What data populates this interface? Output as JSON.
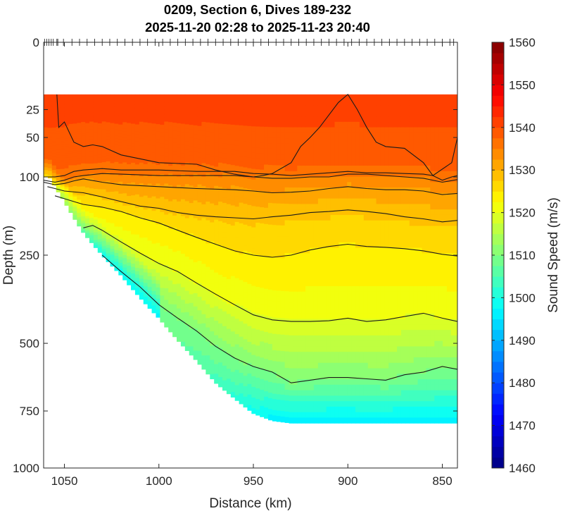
{
  "chart_data": {
    "type": "heatmap",
    "subtype": "filled-contour section",
    "title": "0209, Section 6, Dives 189-232",
    "subtitle": "2025-11-20 02:28 to 2025-11-23 20:40",
    "xlabel": "Distance (km)",
    "ylabel": "Depth (m)",
    "x_reversed": true,
    "xlim": [
      1061,
      842
    ],
    "ylim": [
      0,
      1000
    ],
    "y_scale": "sqrt",
    "x_ticks": [
      "1050",
      "1000",
      "950",
      "900",
      "850"
    ],
    "x_tick_values": [
      1050,
      1000,
      950,
      900,
      850
    ],
    "y_ticks": [
      "0",
      "25",
      "50",
      "100",
      "250",
      "500",
      "750",
      "1000"
    ],
    "y_tick_values": [
      0,
      25,
      50,
      100,
      250,
      500,
      750,
      1000
    ],
    "colorbar": {
      "label": "Sound Speed (m/s)",
      "range": [
        1460,
        1560
      ],
      "ticks": [
        "1460",
        "1470",
        "1480",
        "1490",
        "1500",
        "1510",
        "1520",
        "1530",
        "1540",
        "1550",
        "1560"
      ],
      "tick_values": [
        1460,
        1470,
        1480,
        1490,
        1500,
        1510,
        1520,
        1530,
        1540,
        1550,
        1560
      ],
      "colormap": "jet",
      "stops": [
        "#00007f",
        "#0000ff",
        "#007fff",
        "#00ffff",
        "#7fff7f",
        "#ffff00",
        "#ff7f00",
        "#ff0000",
        "#7f0000"
      ]
    },
    "data_top_depth": 15,
    "bottom_depth_profile": {
      "distance": [
        1058,
        1050,
        1040,
        1030,
        1020,
        1010,
        1000,
        990,
        980,
        970,
        960,
        950,
        940,
        930,
        920,
        900,
        880,
        860,
        842
      ],
      "depth": [
        100,
        140,
        200,
        250,
        300,
        360,
        420,
        490,
        560,
        640,
        700,
        760,
        790,
        800,
        800,
        800,
        800,
        800,
        800
      ]
    },
    "dive_marks": "dive position tick marks along the surface",
    "contours": [
      {
        "level": 1540,
        "distance": [
          1054,
          1053,
          1050,
          1045,
          1040,
          1035,
          1030,
          1020,
          1000,
          980,
          970,
          960,
          955,
          950,
          945,
          940,
          930,
          925,
          920,
          915,
          905,
          900,
          895,
          890,
          885,
          880,
          870,
          860,
          855,
          845,
          842
        ],
        "depth": [
          15,
          40,
          35,
          55,
          60,
          58,
          60,
          70,
          80,
          82,
          90,
          96,
          98,
          100,
          98,
          95,
          80,
          60,
          50,
          40,
          20,
          15,
          25,
          40,
          55,
          60,
          62,
          80,
          98,
          80,
          50
        ]
      },
      {
        "level": 1537,
        "distance": [
          1061,
          1058,
          1055,
          1050,
          1045,
          1040,
          1030,
          1020,
          1000,
          980,
          960,
          950,
          940,
          930,
          920,
          910,
          900,
          890,
          880,
          870,
          860,
          855,
          850,
          845,
          842
        ],
        "depth": [
          100,
          100,
          100,
          98,
          92,
          90,
          88,
          90,
          90,
          92,
          92,
          95,
          96,
          98,
          96,
          94,
          92,
          94,
          94,
          95,
          96,
          98,
          105,
          100,
          98
        ]
      },
      {
        "level": 1535,
        "distance": [
          1061,
          1055,
          1050,
          1045,
          1040,
          1030,
          1020,
          1000,
          980,
          960,
          950,
          940,
          930,
          920,
          910,
          900,
          890,
          880,
          870,
          860,
          850,
          842
        ],
        "depth": [
          105,
          108,
          105,
          100,
          98,
          95,
          96,
          98,
          98,
          98,
          100,
          102,
          102,
          100,
          100,
          96,
          96,
          98,
          100,
          102,
          108,
          104
        ]
      },
      {
        "level": 1532,
        "distance": [
          1061,
          1055,
          1050,
          1045,
          1040,
          1030,
          1020,
          1000,
          980,
          960,
          950,
          940,
          930,
          920,
          910,
          900,
          890,
          880,
          870,
          860,
          850,
          842
        ],
        "depth": [
          108,
          112,
          110,
          106,
          103,
          108,
          112,
          115,
          118,
          120,
          122,
          125,
          124,
          122,
          118,
          115,
          118,
          120,
          120,
          122,
          128,
          126
        ]
      },
      {
        "level": 1528,
        "distance": [
          1059,
          1055,
          1050,
          1040,
          1030,
          1020,
          1010,
          1000,
          990,
          980,
          970,
          960,
          950,
          940,
          930,
          920,
          910,
          900,
          890,
          880,
          870,
          860,
          850,
          842
        ],
        "depth": [
          115,
          118,
          122,
          125,
          132,
          140,
          148,
          152,
          160,
          165,
          168,
          170,
          172,
          168,
          165,
          160,
          158,
          155,
          158,
          162,
          168,
          172,
          178,
          175
        ]
      },
      {
        "level": 1525,
        "distance": [
          1055,
          1050,
          1045,
          1040,
          1030,
          1020,
          1010,
          1000,
          990,
          980,
          970,
          960,
          950,
          940,
          930,
          920,
          910,
          900,
          890,
          880,
          870,
          860,
          850,
          842
        ],
        "depth": [
          130,
          135,
          140,
          145,
          150,
          158,
          170,
          180,
          195,
          210,
          225,
          240,
          250,
          255,
          250,
          238,
          230,
          225,
          230,
          232,
          235,
          240,
          248,
          252
        ]
      },
      {
        "level": 1520,
        "distance": [
          1040,
          1035,
          1030,
          1020,
          1010,
          1000,
          990,
          980,
          970,
          960,
          950,
          940,
          930,
          920,
          910,
          900,
          890,
          880,
          870,
          860,
          850,
          842
        ],
        "depth": [
          190,
          185,
          195,
          220,
          245,
          270,
          290,
          320,
          350,
          380,
          410,
          425,
          430,
          430,
          428,
          420,
          430,
          425,
          415,
          405,
          420,
          430
        ]
      },
      {
        "level": 1510,
        "distance": [
          1030,
          1025,
          1020,
          1010,
          1000,
          990,
          980,
          970,
          960,
          950,
          940,
          930,
          920,
          910,
          900,
          890,
          880,
          870,
          860,
          850,
          842
        ],
        "depth": [
          250,
          270,
          290,
          330,
          380,
          420,
          460,
          510,
          550,
          580,
          600,
          640,
          630,
          620,
          620,
          625,
          630,
          610,
          600,
          580,
          590
        ]
      }
    ]
  }
}
